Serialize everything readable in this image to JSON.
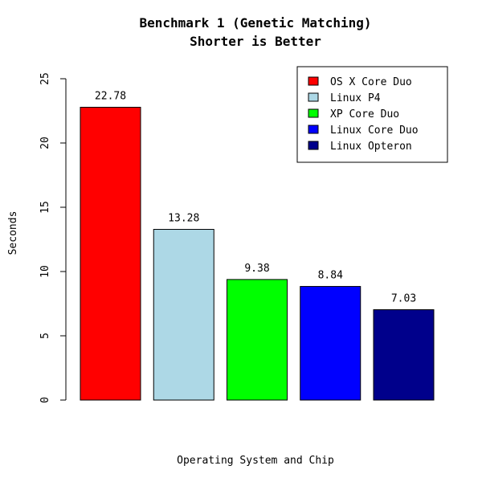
{
  "chart_data": {
    "type": "bar",
    "title": "Benchmark 1 (Genetic Matching)",
    "subtitle": "Shorter is Better",
    "xlabel": "Operating System and Chip",
    "ylabel": "Seconds",
    "ylim": [
      0,
      25
    ],
    "yticks": [
      "0",
      "5",
      "10",
      "15",
      "20",
      "25"
    ],
    "categories": [
      "OS X Core Duo",
      "Linux P4",
      "XP Core Duo",
      "Linux Core Duo",
      "Linux Opteron"
    ],
    "values": [
      22.78,
      13.28,
      9.38,
      8.84,
      7.03
    ],
    "value_labels": [
      "22.78",
      "13.28",
      "9.38",
      "8.84",
      "7.03"
    ],
    "colors": [
      "#ff0000",
      "#add8e6",
      "#00ff00",
      "#0000ff",
      "#00008b"
    ],
    "legend": {
      "placement": "top-right",
      "entries": [
        "OS X Core Duo",
        "Linux P4",
        "XP Core Duo",
        "Linux Core Duo",
        "Linux Opteron"
      ]
    },
    "grid": false
  }
}
